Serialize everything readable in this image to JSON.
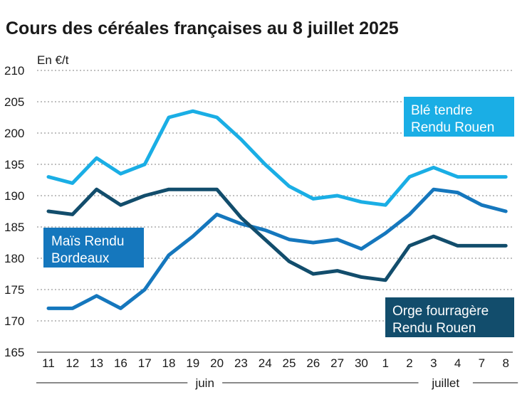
{
  "chart_data": {
    "type": "line",
    "title": "Cours des céréales françaises au 8 juillet 2025",
    "ylabel": "En €/t",
    "ylim": [
      165,
      210
    ],
    "yticks": [
      165,
      170,
      175,
      180,
      185,
      190,
      195,
      200,
      205,
      210
    ],
    "categories": [
      "11",
      "12",
      "13",
      "16",
      "17",
      "18",
      "19",
      "20",
      "23",
      "24",
      "25",
      "26",
      "27",
      "30",
      "1",
      "2",
      "3",
      "4",
      "7",
      "8"
    ],
    "months": [
      {
        "name": "juin",
        "from": 0,
        "to": 13
      },
      {
        "name": "juillet",
        "from": 14,
        "to": 19
      }
    ],
    "series": [
      {
        "name": "Blé tendre Rendu Rouen",
        "label_lines": [
          "Blé tendre",
          "Rendu Rouen"
        ],
        "color": "#1aaee5",
        "values": [
          193,
          192,
          196,
          193.5,
          195,
          202.5,
          203.5,
          202.5,
          199,
          195,
          191.5,
          189.5,
          190,
          189,
          188.5,
          193,
          194.5,
          193,
          193,
          193
        ]
      },
      {
        "name": "Maïs Rendu Bordeaux",
        "label_lines": [
          "Maïs Rendu",
          "Bordeaux"
        ],
        "color": "#1577bd",
        "values": [
          172,
          172,
          174,
          172,
          175,
          180.5,
          183.5,
          187,
          185.5,
          184.5,
          183,
          182.5,
          183,
          181.5,
          184,
          187,
          191,
          190.5,
          188.5,
          187.5
        ]
      },
      {
        "name": "Orge fourragère Rendu Rouen",
        "label_lines": [
          "Orge fourragère",
          "Rendu Rouen"
        ],
        "color": "#124d6c",
        "values": [
          187.5,
          187,
          191,
          188.5,
          190,
          191,
          191,
          191,
          186.5,
          183,
          179.5,
          177.5,
          178,
          177,
          176.5,
          182,
          183.5,
          182,
          182,
          182
        ]
      }
    ]
  }
}
